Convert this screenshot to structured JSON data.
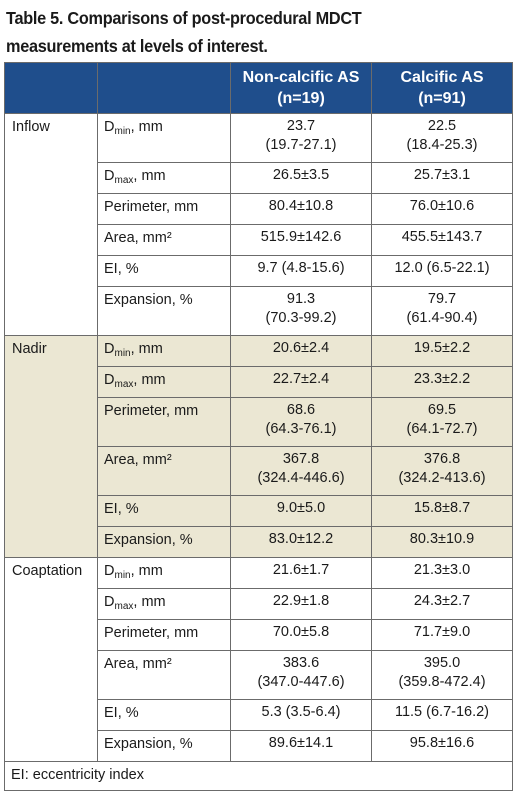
{
  "title": "Table 5. Comparisons of post-procedural MDCT measurements at levels of interest.",
  "header": {
    "col3": [
      "Non-calcific AS",
      "(n=19)"
    ],
    "col4": [
      "Calcific AS",
      "(n=91)"
    ]
  },
  "groups": [
    {
      "name": "Inflow",
      "rows": [
        {
          "label": "D",
          "sub": "min",
          "unit": ", mm",
          "v1": [
            "23.7",
            "(19.7-27.1)"
          ],
          "v2": [
            "22.5",
            "(18.4-25.3)"
          ]
        },
        {
          "label": "D",
          "sub": "max",
          "unit": ", mm",
          "v1": [
            "26.5±3.5"
          ],
          "v2": [
            "25.7±3.1"
          ]
        },
        {
          "label": "Perimeter, mm",
          "v1": [
            "80.4±10.8"
          ],
          "v2": [
            "76.0±10.6"
          ]
        },
        {
          "label": "Area, mm²",
          "v1": [
            "515.9±142.6"
          ],
          "v2": [
            "455.5±143.7"
          ]
        },
        {
          "label": "EI, %",
          "v1": [
            "9.7 (4.8-15.6)"
          ],
          "v2": [
            "12.0 (6.5-22.1)"
          ]
        },
        {
          "label": "Expansion, %",
          "v1": [
            "91.3",
            "(70.3-99.2)"
          ],
          "v2": [
            "79.7",
            "(61.4-90.4)"
          ]
        }
      ]
    },
    {
      "name": "Nadir",
      "rows": [
        {
          "label": "D",
          "sub": "min",
          "unit": ", mm",
          "v1": [
            "20.6±2.4"
          ],
          "v2": [
            "19.5±2.2"
          ]
        },
        {
          "label": "D",
          "sub": "max",
          "unit": ", mm",
          "v1": [
            "22.7±2.4"
          ],
          "v2": [
            "23.3±2.2"
          ]
        },
        {
          "label": "Perimeter, mm",
          "v1": [
            "68.6",
            "(64.3-76.1)"
          ],
          "v2": [
            "69.5",
            "(64.1-72.7)"
          ]
        },
        {
          "label": "Area, mm²",
          "v1": [
            "367.8",
            "(324.4-446.6)"
          ],
          "v2": [
            "376.8",
            "(324.2-413.6)"
          ]
        },
        {
          "label": "EI, %",
          "v1": [
            "9.0±5.0"
          ],
          "v2": [
            "15.8±8.7"
          ]
        },
        {
          "label": "Expansion, %",
          "v1": [
            "83.0±12.2"
          ],
          "v2": [
            "80.3±10.9"
          ]
        }
      ]
    },
    {
      "name": "Coaptation",
      "rows": [
        {
          "label": "D",
          "sub": "min",
          "unit": ", mm",
          "v1": [
            "21.6±1.7"
          ],
          "v2": [
            "21.3±3.0"
          ]
        },
        {
          "label": "D",
          "sub": "max",
          "unit": ", mm",
          "v1": [
            "22.9±1.8"
          ],
          "v2": [
            "24.3±2.7"
          ]
        },
        {
          "label": "Perimeter, mm",
          "v1": [
            "70.0±5.8"
          ],
          "v2": [
            "71.7±9.0"
          ]
        },
        {
          "label": "Area, mm²",
          "v1": [
            "383.6",
            "(347.0-447.6)"
          ],
          "v2": [
            "395.0",
            "(359.8-472.4)"
          ]
        },
        {
          "label": "EI, %",
          "v1": [
            "5.3 (3.5-6.4)"
          ],
          "v2": [
            "11.5 (6.7-16.2)"
          ]
        },
        {
          "label": "Expansion, %",
          "v1": [
            "89.6±14.1"
          ],
          "v2": [
            "95.8±16.6"
          ]
        }
      ]
    }
  ],
  "footnote": "EI: eccentricity index",
  "colors": {
    "header_bg": "#1f4e8c",
    "band_bg": "#ebe7d3"
  }
}
